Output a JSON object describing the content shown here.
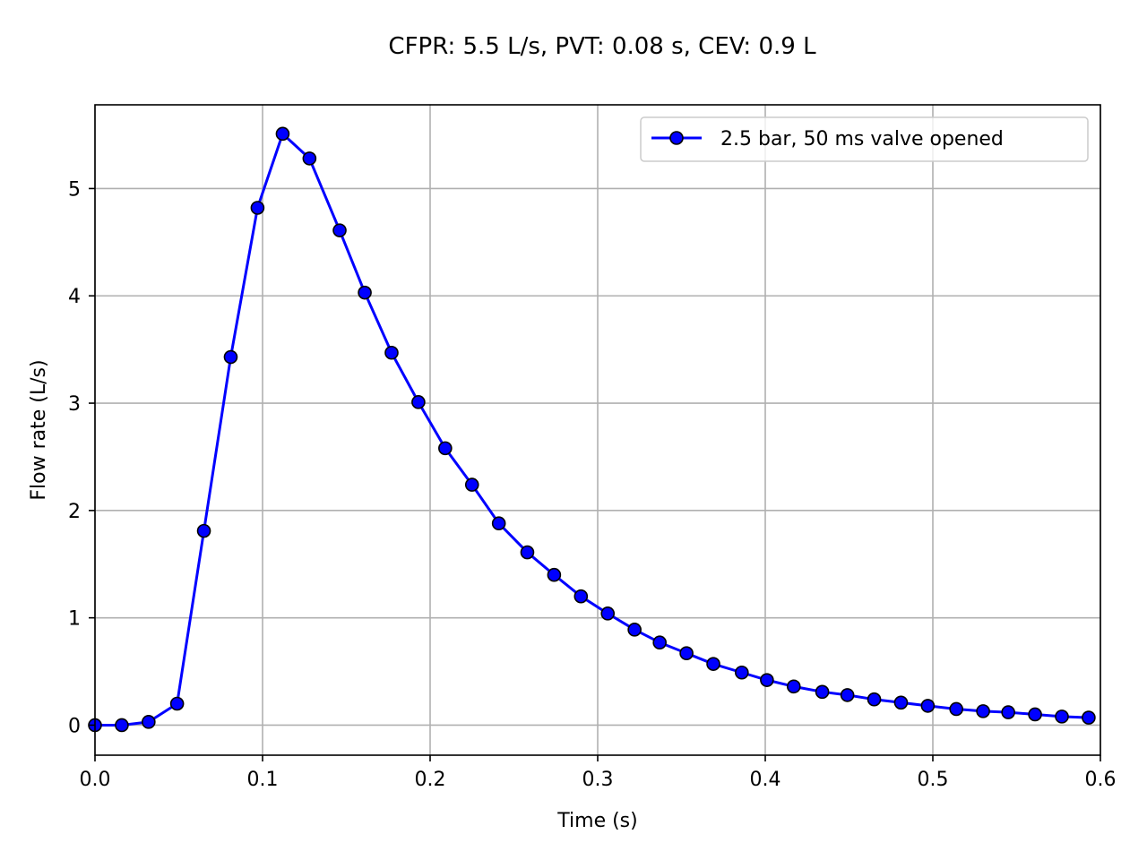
{
  "chart_data": {
    "type": "line",
    "title": "CFPR: 5.5 L/s, PVT: 0.08 s, CEV: 0.9 L",
    "xlabel": "Time (s)",
    "ylabel": "Flow rate (L/s)",
    "xlim": [
      0.0,
      0.6
    ],
    "ylim": [
      -0.28,
      5.78
    ],
    "xticks": [
      0.0,
      0.1,
      0.2,
      0.3,
      0.4,
      0.5,
      0.6
    ],
    "xtick_labels": [
      "0.0",
      "0.1",
      "0.2",
      "0.3",
      "0.4",
      "0.5",
      "0.6"
    ],
    "yticks": [
      0,
      1,
      2,
      3,
      4,
      5
    ],
    "ytick_labels": [
      "0",
      "1",
      "2",
      "3",
      "4",
      "5"
    ],
    "grid": true,
    "legend_position": "top-right",
    "series": [
      {
        "name": "2.5 bar, 50 ms valve opened",
        "color": "#0000ff",
        "marker": "circle",
        "marker_edge_color": "#000000",
        "points": [
          [
            0.0,
            0.0
          ],
          [
            0.016,
            0.0
          ],
          [
            0.032,
            0.03
          ],
          [
            0.049,
            0.2
          ],
          [
            0.065,
            1.81
          ],
          [
            0.081,
            3.43
          ],
          [
            0.097,
            4.82
          ],
          [
            0.112,
            5.51
          ],
          [
            0.128,
            5.28
          ],
          [
            0.146,
            4.61
          ],
          [
            0.161,
            4.03
          ],
          [
            0.177,
            3.47
          ],
          [
            0.193,
            3.01
          ],
          [
            0.209,
            2.58
          ],
          [
            0.225,
            2.24
          ],
          [
            0.241,
            1.88
          ],
          [
            0.258,
            1.61
          ],
          [
            0.274,
            1.4
          ],
          [
            0.29,
            1.2
          ],
          [
            0.306,
            1.04
          ],
          [
            0.322,
            0.89
          ],
          [
            0.337,
            0.77
          ],
          [
            0.353,
            0.67
          ],
          [
            0.369,
            0.57
          ],
          [
            0.386,
            0.49
          ],
          [
            0.401,
            0.42
          ],
          [
            0.417,
            0.36
          ],
          [
            0.434,
            0.31
          ],
          [
            0.449,
            0.28
          ],
          [
            0.465,
            0.24
          ],
          [
            0.481,
            0.21
          ],
          [
            0.497,
            0.18
          ],
          [
            0.514,
            0.15
          ],
          [
            0.53,
            0.13
          ],
          [
            0.545,
            0.12
          ],
          [
            0.561,
            0.1
          ],
          [
            0.577,
            0.08
          ],
          [
            0.593,
            0.07
          ]
        ]
      }
    ]
  }
}
